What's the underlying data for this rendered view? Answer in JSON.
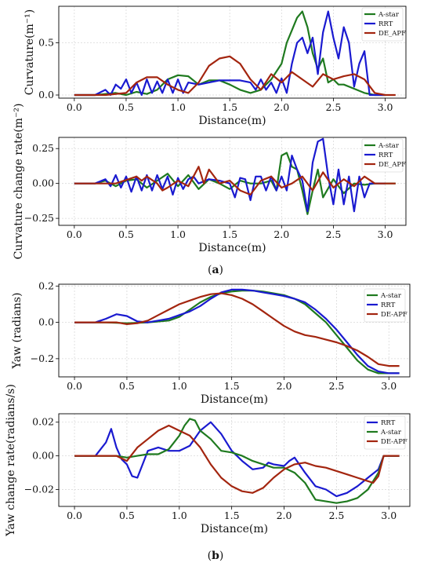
{
  "figure": {
    "caption_a": {
      "open": "(",
      "letter": "a",
      "close": ")"
    },
    "caption_b": {
      "open": "(",
      "letter": "b",
      "close": ")"
    }
  },
  "chart_data": [
    {
      "type": "line",
      "xlabel": "Distance(m)",
      "ylabel": "Curvature(m⁻¹)",
      "xlim": [
        -0.15,
        3.2
      ],
      "ylim": [
        -0.03,
        0.85
      ],
      "xticks": [
        0.0,
        0.5,
        1.0,
        1.5,
        2.0,
        2.5,
        3.0
      ],
      "xtick_labels": [
        "0.0",
        "0.5",
        "1.0",
        "1.5",
        "2.0",
        "2.5",
        "3.0"
      ],
      "yticks": [
        0.0,
        0.5
      ],
      "ytick_labels": [
        "0.0",
        "0.5"
      ],
      "grid": true,
      "legend_position": "top-right",
      "series": [
        {
          "name": "A-star",
          "color": "#1f7a1f",
          "x": [
            0,
            0.2,
            0.4,
            0.5,
            0.6,
            0.7,
            0.8,
            0.9,
            1.0,
            1.1,
            1.2,
            1.3,
            1.4,
            1.5,
            1.6,
            1.7,
            1.8,
            1.9,
            2.0,
            2.05,
            2.1,
            2.15,
            2.2,
            2.25,
            2.3,
            2.35,
            2.4,
            2.45,
            2.5,
            2.55,
            2.6,
            2.7,
            2.8,
            2.9,
            3.0
          ],
          "y": [
            0,
            0,
            0.02,
            0.0,
            0.03,
            0.01,
            0.05,
            0.15,
            0.19,
            0.18,
            0.1,
            0.14,
            0.14,
            0.1,
            0.05,
            0.02,
            0.05,
            0.15,
            0.3,
            0.5,
            0.62,
            0.74,
            0.8,
            0.65,
            0.4,
            0.25,
            0.35,
            0.12,
            0.15,
            0.1,
            0.1,
            0.06,
            0.02,
            0.0,
            0
          ]
        },
        {
          "name": "RRT",
          "color": "#1a1ad0",
          "x": [
            0,
            0.1,
            0.2,
            0.3,
            0.35,
            0.4,
            0.45,
            0.5,
            0.55,
            0.6,
            0.65,
            0.7,
            0.75,
            0.8,
            0.85,
            0.9,
            0.95,
            1.0,
            1.05,
            1.1,
            1.2,
            1.3,
            1.4,
            1.5,
            1.6,
            1.7,
            1.75,
            1.8,
            1.85,
            1.9,
            1.95,
            2.0,
            2.05,
            2.1,
            2.15,
            2.2,
            2.25,
            2.3,
            2.35,
            2.4,
            2.45,
            2.5,
            2.55,
            2.6,
            2.65,
            2.7,
            2.75,
            2.8,
            2.85,
            2.9,
            3.0
          ],
          "y": [
            0,
            0,
            0,
            0.05,
            0.0,
            0.1,
            0.06,
            0.15,
            0.02,
            0.12,
            0.0,
            0.15,
            0.02,
            0.13,
            0.02,
            0.15,
            0.02,
            0.15,
            0.02,
            0.12,
            0.1,
            0.12,
            0.14,
            0.14,
            0.14,
            0.12,
            0.05,
            0.15,
            0.05,
            0.12,
            0.02,
            0.16,
            0.02,
            0.3,
            0.5,
            0.55,
            0.4,
            0.55,
            0.2,
            0.6,
            0.8,
            0.55,
            0.35,
            0.65,
            0.5,
            0.08,
            0.3,
            0.42,
            0.0,
            0.0,
            0
          ]
        },
        {
          "name": "DE_APF",
          "color": "#a3250f",
          "x": [
            0,
            0.3,
            0.5,
            0.6,
            0.7,
            0.8,
            0.9,
            1.0,
            1.1,
            1.2,
            1.3,
            1.4,
            1.5,
            1.6,
            1.7,
            1.8,
            1.9,
            2.0,
            2.1,
            2.2,
            2.3,
            2.4,
            2.5,
            2.6,
            2.7,
            2.8,
            2.9,
            3.0,
            3.1
          ],
          "y": [
            0,
            0,
            0.02,
            0.12,
            0.17,
            0.17,
            0.1,
            0.05,
            0.02,
            0.12,
            0.28,
            0.35,
            0.37,
            0.3,
            0.15,
            0.05,
            0.2,
            0.12,
            0.22,
            0.15,
            0.08,
            0.2,
            0.15,
            0.18,
            0.2,
            0.15,
            0.02,
            0,
            0
          ]
        }
      ]
    },
    {
      "type": "line",
      "xlabel": "Distance(m)",
      "ylabel": "Curvature change rate(m⁻²)",
      "xlim": [
        -0.15,
        3.2
      ],
      "ylim": [
        -0.3,
        0.33
      ],
      "xticks": [
        0.0,
        0.5,
        1.0,
        1.5,
        2.0,
        2.5,
        3.0
      ],
      "xtick_labels": [
        "0.0",
        "0.5",
        "1.0",
        "1.5",
        "2.0",
        "2.5",
        "3.0"
      ],
      "yticks": [
        0.25,
        0.0,
        -0.25
      ],
      "ytick_labels": [
        "0.25",
        "0.00",
        "−0.25"
      ],
      "grid": true,
      "legend_position": "top-right",
      "series": [
        {
          "name": "A-star",
          "color": "#1f7a1f",
          "x": [
            0,
            0.2,
            0.3,
            0.4,
            0.5,
            0.6,
            0.7,
            0.8,
            0.9,
            1.0,
            1.1,
            1.2,
            1.3,
            1.4,
            1.5,
            1.6,
            1.7,
            1.8,
            1.9,
            1.95,
            2.0,
            2.05,
            2.1,
            2.15,
            2.2,
            2.25,
            2.3,
            2.35,
            2.4,
            2.5,
            2.6,
            2.7,
            2.8,
            2.9,
            3.0,
            3.1
          ],
          "y": [
            0,
            0,
            0.02,
            -0.02,
            0.02,
            0.03,
            -0.03,
            0.02,
            0.07,
            -0.02,
            0.06,
            -0.04,
            0.03,
            0.0,
            -0.04,
            0.02,
            0.0,
            0.0,
            0.02,
            -0.05,
            0.2,
            0.22,
            0.12,
            0.1,
            -0.05,
            -0.22,
            -0.05,
            0.1,
            -0.1,
            0.03,
            -0.07,
            0.0,
            -0.01,
            0.0,
            0,
            0
          ]
        },
        {
          "name": "RRT",
          "color": "#1a1ad0",
          "x": [
            0,
            0.2,
            0.3,
            0.35,
            0.4,
            0.45,
            0.5,
            0.55,
            0.6,
            0.65,
            0.7,
            0.75,
            0.8,
            0.85,
            0.9,
            0.95,
            1.0,
            1.05,
            1.1,
            1.15,
            1.2,
            1.3,
            1.4,
            1.5,
            1.55,
            1.6,
            1.65,
            1.7,
            1.75,
            1.8,
            1.85,
            1.9,
            1.95,
            2.0,
            2.05,
            2.1,
            2.15,
            2.2,
            2.25,
            2.3,
            2.35,
            2.4,
            2.45,
            2.5,
            2.55,
            2.6,
            2.65,
            2.7,
            2.75,
            2.8,
            2.85,
            2.9,
            3.0
          ],
          "y": [
            0,
            0.0,
            0.03,
            -0.02,
            0.06,
            -0.03,
            0.05,
            -0.06,
            0.05,
            -0.05,
            0.06,
            -0.05,
            0.06,
            -0.04,
            0.05,
            -0.08,
            0.04,
            -0.04,
            0.03,
            0.05,
            0.0,
            0.03,
            0.02,
            0.0,
            -0.1,
            0.04,
            0.03,
            -0.12,
            0.05,
            0.05,
            -0.05,
            0.05,
            -0.05,
            0.05,
            -0.05,
            0.2,
            0.1,
            0.02,
            -0.2,
            0.15,
            0.3,
            0.32,
            0.05,
            -0.15,
            0.1,
            -0.15,
            0.05,
            -0.2,
            0.05,
            -0.1,
            0.0,
            0.0,
            0
          ]
        },
        {
          "name": "DE_APF",
          "color": "#a3250f",
          "x": [
            0,
            0.4,
            0.6,
            0.65,
            0.7,
            0.8,
            0.85,
            0.9,
            1.0,
            1.1,
            1.2,
            1.25,
            1.3,
            1.4,
            1.5,
            1.6,
            1.7,
            1.8,
            1.9,
            2.0,
            2.1,
            2.2,
            2.3,
            2.4,
            2.5,
            2.6,
            2.7,
            2.8,
            2.9,
            3.0,
            3.1
          ],
          "y": [
            0,
            0,
            0.05,
            0.02,
            0.05,
            0.0,
            -0.05,
            -0.03,
            0.02,
            -0.02,
            0.12,
            0.0,
            0.1,
            0.0,
            0.02,
            -0.05,
            -0.08,
            0.02,
            0.05,
            -0.03,
            0.0,
            0.05,
            -0.05,
            0.08,
            -0.03,
            0.03,
            -0.02,
            0.05,
            0.0,
            0,
            0
          ]
        }
      ]
    },
    {
      "type": "line",
      "xlabel": "Distance(m)",
      "ylabel": "Yaw (radians)",
      "xlim": [
        -0.15,
        3.2
      ],
      "ylim": [
        -0.3,
        0.21
      ],
      "xticks": [
        0.0,
        0.5,
        1.0,
        1.5,
        2.0,
        2.5,
        3.0
      ],
      "xtick_labels": [
        "0.0",
        "0.5",
        "1.0",
        "1.5",
        "2.0",
        "2.5",
        "3.0"
      ],
      "yticks": [
        0.2,
        0.0,
        -0.2
      ],
      "ytick_labels": [
        "0.2",
        "0.0",
        "−0.2"
      ],
      "grid": true,
      "legend_position": "center-right",
      "series": [
        {
          "name": "A-star",
          "color": "#1f7a1f",
          "x": [
            0,
            0.3,
            0.5,
            0.7,
            0.9,
            1.0,
            1.1,
            1.2,
            1.3,
            1.4,
            1.5,
            1.6,
            1.7,
            1.8,
            1.9,
            2.0,
            2.1,
            2.2,
            2.3,
            2.4,
            2.5,
            2.6,
            2.7,
            2.8,
            2.9,
            3.0,
            3.1
          ],
          "y": [
            0,
            0,
            -0.005,
            0.0,
            0.01,
            0.03,
            0.07,
            0.11,
            0.14,
            0.16,
            0.17,
            0.175,
            0.175,
            0.17,
            0.16,
            0.15,
            0.13,
            0.1,
            0.05,
            0.0,
            -0.07,
            -0.14,
            -0.21,
            -0.26,
            -0.28,
            -0.28,
            -0.28
          ]
        },
        {
          "name": "RRT",
          "color": "#1a1ad0",
          "x": [
            0,
            0.2,
            0.3,
            0.4,
            0.5,
            0.6,
            0.7,
            0.8,
            0.9,
            1.0,
            1.1,
            1.2,
            1.3,
            1.4,
            1.5,
            1.6,
            1.7,
            1.8,
            1.9,
            2.0,
            2.1,
            2.2,
            2.3,
            2.4,
            2.5,
            2.6,
            2.7,
            2.8,
            2.9,
            3.0,
            3.1
          ],
          "y": [
            0,
            0,
            0.02,
            0.045,
            0.035,
            0.005,
            0.0,
            0.01,
            0.02,
            0.04,
            0.06,
            0.09,
            0.13,
            0.165,
            0.18,
            0.18,
            0.175,
            0.165,
            0.155,
            0.145,
            0.13,
            0.11,
            0.07,
            0.02,
            -0.04,
            -0.11,
            -0.18,
            -0.24,
            -0.27,
            -0.28,
            -0.28
          ]
        },
        {
          "name": "DE-APF",
          "color": "#a3250f",
          "x": [
            0,
            0.4,
            0.5,
            0.6,
            0.7,
            0.8,
            0.9,
            1.0,
            1.1,
            1.2,
            1.3,
            1.4,
            1.5,
            1.6,
            1.7,
            1.8,
            1.9,
            2.0,
            2.1,
            2.2,
            2.3,
            2.4,
            2.5,
            2.6,
            2.7,
            2.8,
            2.9,
            3.0,
            3.1
          ],
          "y": [
            0,
            0,
            -0.01,
            -0.005,
            0.01,
            0.04,
            0.07,
            0.1,
            0.12,
            0.14,
            0.155,
            0.16,
            0.15,
            0.13,
            0.1,
            0.06,
            0.02,
            -0.02,
            -0.05,
            -0.07,
            -0.08,
            -0.095,
            -0.11,
            -0.13,
            -0.155,
            -0.19,
            -0.23,
            -0.24,
            -0.24
          ]
        }
      ]
    },
    {
      "type": "line",
      "xlabel": "Distance(m)",
      "ylabel": "Yaw change rate(radians/s)",
      "xlim": [
        -0.15,
        3.2
      ],
      "ylim": [
        -0.03,
        0.025
      ],
      "xticks": [
        0.0,
        0.5,
        1.0,
        1.5,
        2.0,
        2.5,
        3.0
      ],
      "xtick_labels": [
        "0.0",
        "0.5",
        "1.0",
        "1.5",
        "2.0",
        "2.5",
        "3.0"
      ],
      "yticks": [
        0.02,
        0.0,
        -0.02
      ],
      "ytick_labels": [
        "0.02",
        "0.00",
        "−0.02"
      ],
      "grid": true,
      "legend_position": "top-right",
      "series": [
        {
          "name": "RRT",
          "color": "#1a1ad0",
          "x": [
            0,
            0.2,
            0.3,
            0.35,
            0.4,
            0.45,
            0.5,
            0.55,
            0.6,
            0.65,
            0.7,
            0.8,
            0.9,
            1.0,
            1.1,
            1.2,
            1.3,
            1.4,
            1.5,
            1.6,
            1.7,
            1.8,
            1.85,
            1.9,
            2.0,
            2.05,
            2.1,
            2.2,
            2.3,
            2.4,
            2.5,
            2.6,
            2.7,
            2.8,
            2.9,
            2.95,
            3.0,
            3.1
          ],
          "y": [
            0,
            0.0,
            0.008,
            0.016,
            0.005,
            -0.002,
            -0.005,
            -0.012,
            -0.013,
            -0.005,
            0.003,
            0.005,
            0.003,
            0.003,
            0.006,
            0.015,
            0.02,
            0.013,
            0.003,
            -0.003,
            -0.008,
            -0.007,
            -0.004,
            -0.005,
            -0.006,
            -0.003,
            -0.001,
            -0.01,
            -0.018,
            -0.02,
            -0.024,
            -0.022,
            -0.018,
            -0.013,
            -0.008,
            0.0,
            0,
            0
          ]
        },
        {
          "name": "A-star",
          "color": "#1f7a1f",
          "x": [
            0,
            0.4,
            0.5,
            0.6,
            0.7,
            0.8,
            0.9,
            1.0,
            1.05,
            1.1,
            1.15,
            1.2,
            1.3,
            1.4,
            1.5,
            1.6,
            1.7,
            1.8,
            1.9,
            2.0,
            2.1,
            2.2,
            2.3,
            2.4,
            2.5,
            2.6,
            2.7,
            2.8,
            2.9,
            2.95,
            3.0,
            3.1
          ],
          "y": [
            0,
            0,
            -0.001,
            0.0,
            0.001,
            0.001,
            0.004,
            0.012,
            0.018,
            0.022,
            0.021,
            0.015,
            0.01,
            0.003,
            0.002,
            0.0,
            -0.003,
            -0.005,
            -0.007,
            -0.007,
            -0.01,
            -0.016,
            -0.026,
            -0.027,
            -0.028,
            -0.027,
            -0.025,
            -0.02,
            -0.01,
            0.0,
            0,
            0
          ]
        },
        {
          "name": "DE-APF",
          "color": "#a3250f",
          "x": [
            0,
            0.4,
            0.5,
            0.6,
            0.7,
            0.8,
            0.9,
            1.0,
            1.1,
            1.2,
            1.3,
            1.4,
            1.5,
            1.6,
            1.7,
            1.8,
            1.9,
            2.0,
            2.1,
            2.2,
            2.3,
            2.4,
            2.5,
            2.6,
            2.7,
            2.8,
            2.85,
            2.9,
            2.95,
            3.0,
            3.1
          ],
          "y": [
            0,
            0,
            -0.003,
            0.005,
            0.01,
            0.015,
            0.018,
            0.015,
            0.012,
            0.005,
            -0.005,
            -0.013,
            -0.018,
            -0.021,
            -0.022,
            -0.019,
            -0.013,
            -0.008,
            -0.005,
            -0.004,
            -0.006,
            -0.007,
            -0.009,
            -0.011,
            -0.013,
            -0.015,
            -0.016,
            -0.012,
            0.0,
            0,
            0
          ]
        }
      ]
    }
  ]
}
